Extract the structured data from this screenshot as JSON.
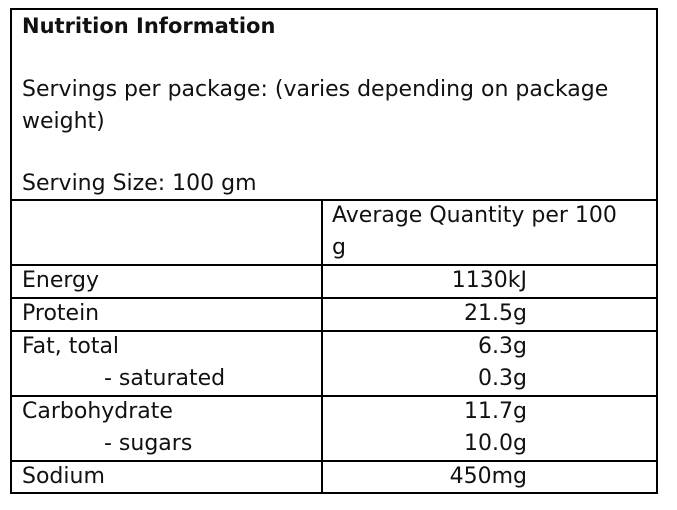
{
  "header": {
    "title": "Nutrition Information",
    "servings": "Servings per package: (varies depending on package weight)",
    "serving_size": "Serving Size: 100 gm"
  },
  "table": {
    "column_header": "Average Quantity per 100 g",
    "groups": [
      [
        [
          "Energy",
          "1130kJ"
        ]
      ],
      [
        [
          "Protein",
          "21.5g"
        ]
      ],
      [
        [
          "Fat, total",
          "6.3g"
        ],
        [
          "- saturated",
          "0.3g"
        ]
      ],
      [
        [
          "Carbohydrate",
          "11.7g"
        ],
        [
          "- sugars",
          "10.0g"
        ]
      ],
      [
        [
          "Sodium",
          "450mg"
        ]
      ]
    ]
  }
}
